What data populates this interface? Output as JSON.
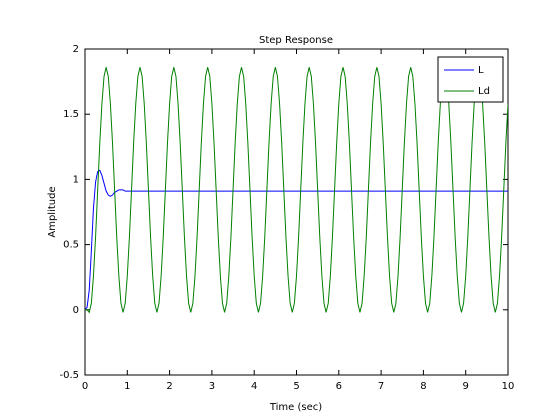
{
  "chart_data": {
    "type": "line",
    "title": "Step Response",
    "xlabel": "Time (sec)",
    "ylabel": "Amplitude",
    "xlim": [
      0,
      10
    ],
    "ylim": [
      -0.5,
      2
    ],
    "xticks": [
      0,
      1,
      2,
      3,
      4,
      5,
      6,
      7,
      8,
      9,
      10
    ],
    "yticks": [
      -0.5,
      0,
      0.5,
      1,
      1.5,
      2
    ],
    "grid": false,
    "legend": "upper right",
    "series": [
      {
        "name": "L",
        "color": "#0000ff",
        "x": [
          0,
          0.05,
          0.1,
          0.15,
          0.2,
          0.25,
          0.3,
          0.35,
          0.4,
          0.45,
          0.5,
          0.55,
          0.6,
          0.65,
          0.7,
          0.75,
          0.8,
          0.85,
          0.9,
          0.95,
          10
        ],
        "values": [
          0,
          0.02,
          0.15,
          0.45,
          0.78,
          0.98,
          1.06,
          1.07,
          1.03,
          0.97,
          0.91,
          0.88,
          0.87,
          0.88,
          0.9,
          0.91,
          0.92,
          0.92,
          0.92,
          0.91,
          0.91
        ]
      },
      {
        "name": "Ld",
        "color": "#008000",
        "x": [
          0,
          0.05,
          0.1,
          0.15,
          0.2,
          0.25,
          0.3,
          0.35,
          0.4,
          0.45,
          0.5,
          0.55,
          0.6,
          0.65,
          0.7,
          0.75,
          0.8,
          0.85,
          0.9,
          0.95,
          1,
          1.05,
          1.1,
          1.15,
          1.2,
          1.25,
          1.3,
          1.35,
          1.4,
          1.45,
          1.5,
          1.55,
          1.6,
          1.65,
          1.7,
          1.75,
          1.8,
          1.85,
          1.9,
          1.95,
          2,
          2.05,
          2.1,
          2.15,
          2.2,
          2.25,
          2.3,
          2.35,
          2.4,
          2.45,
          2.5,
          2.55,
          2.6,
          2.65,
          2.7,
          2.75,
          2.8,
          2.85,
          2.9,
          2.95,
          3,
          3.05,
          3.1,
          3.15,
          3.2,
          3.25,
          3.3,
          3.35,
          3.4,
          3.45,
          3.5,
          3.55,
          3.6,
          3.65,
          3.7,
          3.75,
          3.8,
          3.85,
          3.9,
          3.95,
          4,
          4.05,
          4.1,
          4.15,
          4.2,
          4.25,
          4.3,
          4.35,
          4.4,
          4.45,
          4.5,
          4.55,
          4.6,
          4.65,
          4.7,
          4.75,
          4.8,
          4.85,
          4.9,
          4.95,
          5,
          5.05,
          5.1,
          5.15,
          5.2,
          5.25,
          5.3,
          5.35,
          5.4,
          5.45,
          5.5,
          5.55,
          5.6,
          5.65,
          5.7,
          5.75,
          5.8,
          5.85,
          5.9,
          5.95,
          6,
          6.05,
          6.1,
          6.15,
          6.2,
          6.25,
          6.3,
          6.35,
          6.4,
          6.45,
          6.5,
          6.55,
          6.6,
          6.65,
          6.7,
          6.75,
          6.8,
          6.85,
          6.9,
          6.95,
          7,
          7.05,
          7.1,
          7.15,
          7.2,
          7.25,
          7.3,
          7.35,
          7.4,
          7.45,
          7.5,
          7.55,
          7.6,
          7.65,
          7.7,
          7.75,
          7.8,
          7.85,
          7.9,
          7.95,
          8,
          8.05,
          8.1,
          8.15,
          8.2,
          8.25,
          8.3,
          8.35,
          8.4,
          8.45,
          8.5,
          8.55,
          8.6,
          8.65,
          8.7,
          8.75,
          8.8,
          8.85,
          8.9,
          8.95,
          9,
          9.05,
          9.1,
          9.15,
          9.2,
          9.25,
          9.3,
          9.35,
          9.4,
          9.45,
          9.5,
          9.55,
          9.6,
          9.65,
          9.7,
          9.75,
          9.8,
          9.85,
          9.9,
          9.95,
          10
        ],
        "values": [
          0,
          0,
          -0.02,
          0.05,
          0.26,
          0.56,
          0.92,
          1.28,
          1.58,
          1.79,
          1.86,
          1.79,
          1.58,
          1.28,
          0.92,
          0.56,
          0.26,
          0.05,
          -0.02,
          0.05,
          0.26,
          0.56,
          0.92,
          1.28,
          1.58,
          1.79,
          1.86,
          1.79,
          1.58,
          1.28,
          0.92,
          0.56,
          0.26,
          0.05,
          -0.02,
          0.05,
          0.26,
          0.56,
          0.92,
          1.28,
          1.58,
          1.79,
          1.86,
          1.79,
          1.58,
          1.28,
          0.92,
          0.56,
          0.26,
          0.05,
          -0.02,
          0.05,
          0.26,
          0.56,
          0.92,
          1.28,
          1.58,
          1.79,
          1.86,
          1.79,
          1.58,
          1.28,
          0.92,
          0.56,
          0.26,
          0.05,
          -0.02,
          0.05,
          0.26,
          0.56,
          0.92,
          1.28,
          1.58,
          1.79,
          1.86,
          1.79,
          1.58,
          1.28,
          0.92,
          0.56,
          0.26,
          0.05,
          -0.02,
          0.05,
          0.26,
          0.56,
          0.92,
          1.28,
          1.58,
          1.79,
          1.86,
          1.79,
          1.58,
          1.28,
          0.92,
          0.56,
          0.26,
          0.05,
          -0.02,
          0.05,
          0.26,
          0.56,
          0.92,
          1.28,
          1.58,
          1.79,
          1.86,
          1.79,
          1.58,
          1.28,
          0.92,
          0.56,
          0.26,
          0.05,
          -0.02,
          0.05,
          0.26,
          0.56,
          0.92,
          1.28,
          1.58,
          1.79,
          1.86,
          1.79,
          1.58,
          1.28,
          0.92,
          0.56,
          0.26,
          0.05,
          -0.02,
          0.05,
          0.26,
          0.56,
          0.92,
          1.28,
          1.58,
          1.79,
          1.86,
          1.79,
          1.58,
          1.28,
          0.92,
          0.56,
          0.26,
          0.05,
          -0.02,
          0.05,
          0.26,
          0.56,
          0.92,
          1.28,
          1.58,
          1.79,
          1.86,
          1.79,
          1.58,
          1.28,
          0.92,
          0.56,
          0.26,
          0.05,
          -0.02,
          0.05,
          0.26,
          0.56,
          0.92,
          1.28,
          1.58,
          1.79,
          1.86,
          1.79,
          1.58,
          1.28,
          0.92,
          0.56,
          0.26,
          0.05,
          -0.02,
          0.05,
          0.26,
          0.56,
          0.92,
          1.28,
          1.58,
          1.79,
          1.86,
          1.79,
          1.58,
          1.28,
          0.92,
          0.56,
          0.26,
          0.05,
          -0.02,
          0.05,
          0.26,
          0.56,
          0.92,
          1.28,
          1.58
        ]
      }
    ]
  }
}
